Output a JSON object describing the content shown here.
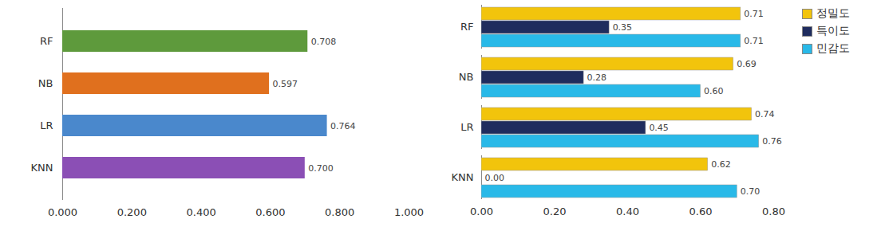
{
  "chart_data": [
    {
      "type": "bar",
      "orientation": "horizontal",
      "categories": [
        "RF",
        "NB",
        "LR",
        "KNN"
      ],
      "values": [
        0.708,
        0.597,
        0.764,
        0.7
      ],
      "value_labels": [
        "0.708",
        "0.597",
        "0.764",
        "0.700"
      ],
      "colors": [
        "#5e9a3c",
        "#e0701e",
        "#4a88cc",
        "#8b4fb5"
      ],
      "data_labels": true,
      "xlim": [
        0,
        1
      ],
      "xticks": [
        {
          "value": 0,
          "label": "0.000"
        },
        {
          "value": 0.2,
          "label": "0.200"
        },
        {
          "value": 0.4,
          "label": "0.400"
        },
        {
          "value": 0.6,
          "label": "0.600"
        },
        {
          "value": 0.8,
          "label": "0.800"
        },
        {
          "value": 1,
          "label": "1.000"
        }
      ]
    },
    {
      "type": "bar",
      "orientation": "horizontal",
      "categories": [
        "RF",
        "NB",
        "LR",
        "KNN"
      ],
      "series": [
        {
          "name": "정밀도",
          "color": "#f2c40c",
          "values": [
            0.71,
            0.69,
            0.74,
            0.62
          ],
          "value_labels": [
            "0.71",
            "0.69",
            "0.74",
            "0.62"
          ]
        },
        {
          "name": "특이도",
          "color": "#1f2c5e",
          "values": [
            0.35,
            0.28,
            0.45,
            0
          ],
          "value_labels": [
            "0.35",
            "0.28",
            "0.45",
            "0.00"
          ]
        },
        {
          "name": "민감도",
          "color": "#29b9e8",
          "values": [
            0.71,
            0.6,
            0.76,
            0.7
          ],
          "value_labels": [
            "0.71",
            "0.60",
            "0.76",
            "0.70"
          ]
        }
      ],
      "data_labels": true,
      "legend": "right",
      "xlim": [
        0,
        0.8
      ],
      "xticks": [
        {
          "value": 0,
          "label": "0.00"
        },
        {
          "value": 0.2,
          "label": "0.20"
        },
        {
          "value": 0.4,
          "label": "0.40"
        },
        {
          "value": 0.6,
          "label": "0.60"
        },
        {
          "value": 0.8,
          "label": "0.80"
        }
      ]
    }
  ]
}
